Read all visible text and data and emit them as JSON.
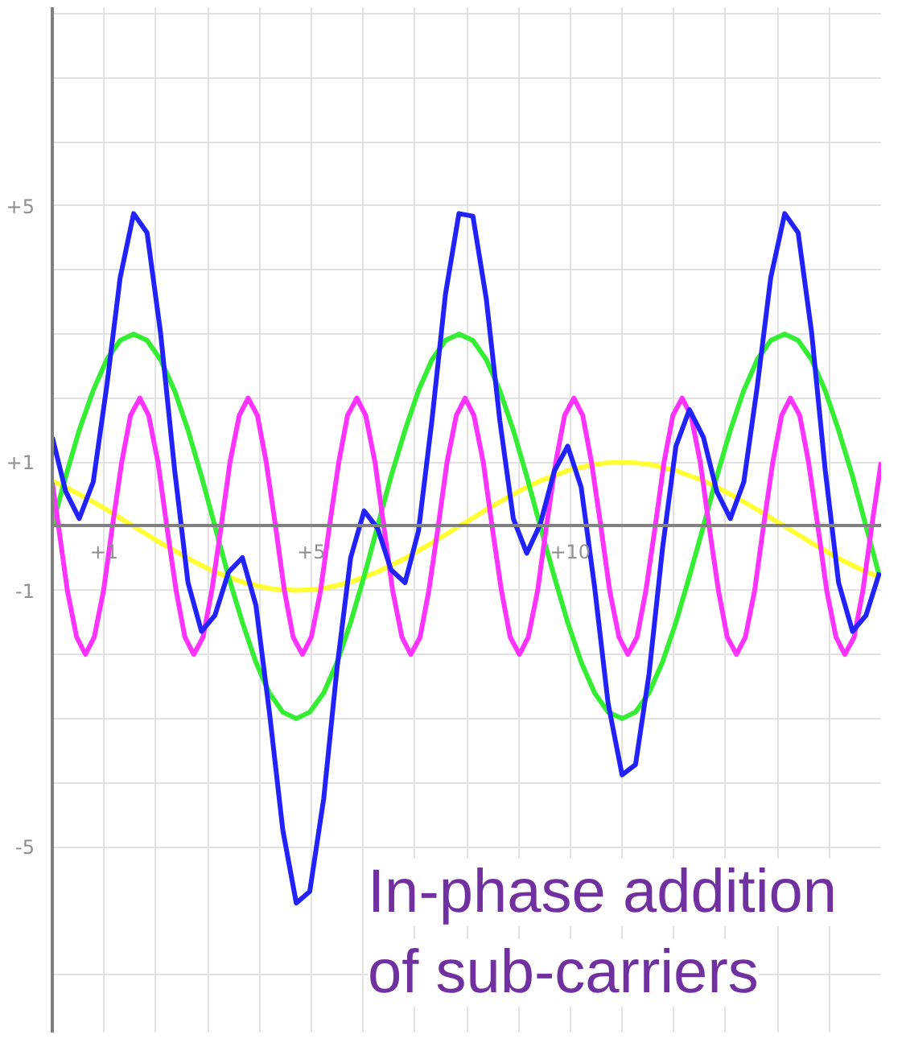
{
  "chart_data": {
    "type": "line",
    "x": [
      0,
      0.26,
      0.52,
      0.79,
      1.05,
      1.31,
      1.57,
      1.83,
      2.09,
      2.36,
      2.62,
      2.88,
      3.14,
      3.4,
      3.67,
      3.93,
      4.19,
      4.45,
      4.71,
      4.97,
      5.24,
      5.5,
      5.76,
      6.02,
      6.28,
      6.54,
      6.81,
      7.07,
      7.33,
      7.59,
      7.85,
      8.12,
      8.38,
      8.64,
      8.9,
      9.16,
      9.42,
      9.69,
      9.95,
      10.21,
      10.47,
      10.73,
      11.0,
      11.26,
      11.52,
      11.78,
      12.04,
      12.3,
      12.57,
      12.83,
      13.09,
      13.35,
      13.61,
      13.87,
      14.14,
      14.4,
      14.66,
      14.92,
      15.18,
      15.45,
      15.71,
      15.97
    ],
    "series": [
      {
        "color": "#ffff33",
        "values": [
          0.71,
          0.61,
          0.5,
          0.38,
          0.26,
          0.13,
          0,
          -0.13,
          -0.26,
          -0.38,
          -0.5,
          -0.61,
          -0.71,
          -0.79,
          -0.87,
          -0.92,
          -0.97,
          -0.99,
          -1,
          -0.99,
          -0.97,
          -0.92,
          -0.87,
          -0.79,
          -0.71,
          -0.61,
          -0.5,
          -0.38,
          -0.26,
          -0.13,
          0,
          0.13,
          0.26,
          0.38,
          0.5,
          0.61,
          0.71,
          0.79,
          0.87,
          0.92,
          0.97,
          0.99,
          1,
          0.99,
          0.97,
          0.92,
          0.87,
          0.79,
          0.71,
          0.61,
          0.5,
          0.38,
          0.26,
          0.13,
          0,
          -0.13,
          -0.26,
          -0.38,
          -0.5,
          -0.61,
          -0.71,
          -0.79
        ]
      },
      {
        "color": "#33ee33",
        "values": [
          0,
          0.78,
          1.5,
          2.12,
          2.6,
          2.9,
          3,
          2.9,
          2.6,
          2.12,
          1.5,
          0.78,
          0,
          -0.78,
          -1.5,
          -2.12,
          -2.6,
          -2.9,
          -3,
          -2.9,
          -2.6,
          -2.12,
          -1.5,
          -0.78,
          0,
          0.78,
          1.5,
          2.12,
          2.6,
          2.9,
          3,
          2.9,
          2.6,
          2.12,
          1.5,
          0.78,
          0,
          -0.78,
          -1.5,
          -2.12,
          -2.6,
          -2.9,
          -3,
          -2.9,
          -2.6,
          -2.12,
          -1.5,
          -0.78,
          0,
          0.78,
          1.5,
          2.12,
          2.6,
          2.9,
          3,
          2.9,
          2.6,
          2.12,
          1.5,
          0.78,
          0,
          -0.78
        ]
      },
      {
        "color": "#ff33ff",
        "x": [
          0,
          0.12,
          0.29,
          0.47,
          0.64,
          0.81,
          0.99,
          1.16,
          1.34,
          1.51,
          1.69,
          1.86,
          2.04,
          2.21,
          2.39,
          2.56,
          2.73,
          2.91,
          3.08,
          3.26,
          3.43,
          3.61,
          3.78,
          3.96,
          4.13,
          4.31,
          4.48,
          4.65,
          4.83,
          5.0,
          5.18,
          5.35,
          5.53,
          5.7,
          5.88,
          6.05,
          6.23,
          6.4,
          6.57,
          6.75,
          6.92,
          7.1,
          7.27,
          7.45,
          7.62,
          7.8,
          7.97,
          8.14,
          8.32,
          8.49,
          8.67,
          8.84,
          9.02,
          9.19,
          9.37,
          9.54,
          9.72,
          9.89,
          10.07,
          10.24,
          10.41,
          10.59,
          10.76,
          10.94,
          11.11,
          11.29,
          11.46,
          11.64,
          11.81,
          11.98,
          12.16,
          12.33,
          12.51,
          12.68,
          12.86,
          13.03,
          13.21,
          13.38,
          13.56,
          13.73,
          13.91,
          14.08,
          14.25,
          14.43,
          14.6,
          14.78,
          14.95,
          15.13,
          15.3,
          15.48,
          15.65,
          15.82,
          16.0
        ],
        "values": [
          0.68,
          0,
          -1,
          -1.73,
          -2,
          -1.73,
          -1,
          0,
          1,
          1.73,
          2,
          1.73,
          1,
          0,
          -1,
          -1.73,
          -2,
          -1.73,
          -1,
          0,
          1,
          1.73,
          2,
          1.73,
          1,
          0,
          -1,
          -1.73,
          -2,
          -1.73,
          -1,
          0,
          1,
          1.73,
          2,
          1.73,
          1,
          0,
          -1,
          -1.73,
          -2,
          -1.73,
          -1,
          0,
          1,
          1.73,
          2,
          1.73,
          1,
          0,
          -1,
          -1.73,
          -2,
          -1.73,
          -1,
          0,
          1,
          1.73,
          2,
          1.73,
          1,
          0,
          -1,
          -1.73,
          -2,
          -1.73,
          -1,
          0,
          1,
          1.73,
          2,
          1.73,
          1,
          0,
          -1,
          -1.73,
          -2,
          -1.73,
          -1,
          0,
          1,
          1.73,
          2,
          1.73,
          1,
          0,
          -1,
          -1.73,
          -2,
          -1.73,
          -1,
          0,
          1
        ]
      },
      {
        "color": "#2222ff",
        "values": [
          1.39,
          0.54,
          0.12,
          0.69,
          2.18,
          3.88,
          4.88,
          4.58,
          3.02,
          0.89,
          -0.88,
          -1.64,
          -1.39,
          -0.72,
          -0.49,
          -1.23,
          -2.89,
          -4.74,
          -5.88,
          -5.7,
          -4.25,
          -2.19,
          -0.49,
          0.24,
          -0.03,
          -0.68,
          -0.88,
          -0.07,
          1.66,
          3.62,
          4.88,
          4.84,
          3.54,
          1.65,
          0.12,
          -0.42,
          0.03,
          0.86,
          1.25,
          0.61,
          -0.95,
          -2.76,
          -3.88,
          -3.72,
          -2.31,
          -0.35,
          1.25,
          1.82,
          1.39,
          0.54,
          0.12,
          0.69,
          2.18,
          3.88,
          4.88,
          4.58,
          3.02,
          0.89,
          -0.88,
          -1.64,
          -1.39,
          -0.72
        ]
      }
    ],
    "xlim": [
      0,
      16
    ],
    "ylim": [
      -7.9,
      8.1
    ],
    "xticks": [
      {
        "value": 1,
        "label": "+1"
      },
      {
        "value": 2,
        "label": null
      },
      {
        "value": 3,
        "label": null
      },
      {
        "value": 4,
        "label": null
      },
      {
        "value": 5,
        "label": "+5"
      },
      {
        "value": 6,
        "label": null
      },
      {
        "value": 7,
        "label": null
      },
      {
        "value": 8,
        "label": null
      },
      {
        "value": 9,
        "label": null
      },
      {
        "value": 10,
        "label": "+10"
      },
      {
        "value": 11,
        "label": null
      },
      {
        "value": 12,
        "label": null
      },
      {
        "value": 13,
        "label": null
      },
      {
        "value": 14,
        "label": null
      },
      {
        "value": 15,
        "label": null
      }
    ],
    "yticks": [
      {
        "value": -7,
        "label": null
      },
      {
        "value": -5,
        "label": "-5"
      },
      {
        "value": -4,
        "label": null
      },
      {
        "value": -3,
        "label": null
      },
      {
        "value": -2,
        "label": null
      },
      {
        "value": -1,
        "label": "-1"
      },
      {
        "value": 1,
        "label": "+1"
      },
      {
        "value": 2,
        "label": null
      },
      {
        "value": 3,
        "label": null
      },
      {
        "value": 4,
        "label": null
      },
      {
        "value": 5,
        "label": "+5"
      },
      {
        "value": 6,
        "label": null
      },
      {
        "value": 7,
        "label": null
      },
      {
        "value": 8,
        "label": null
      }
    ],
    "grid": true,
    "annotations": [
      "In-phase addition\nof sub-carriers"
    ]
  }
}
